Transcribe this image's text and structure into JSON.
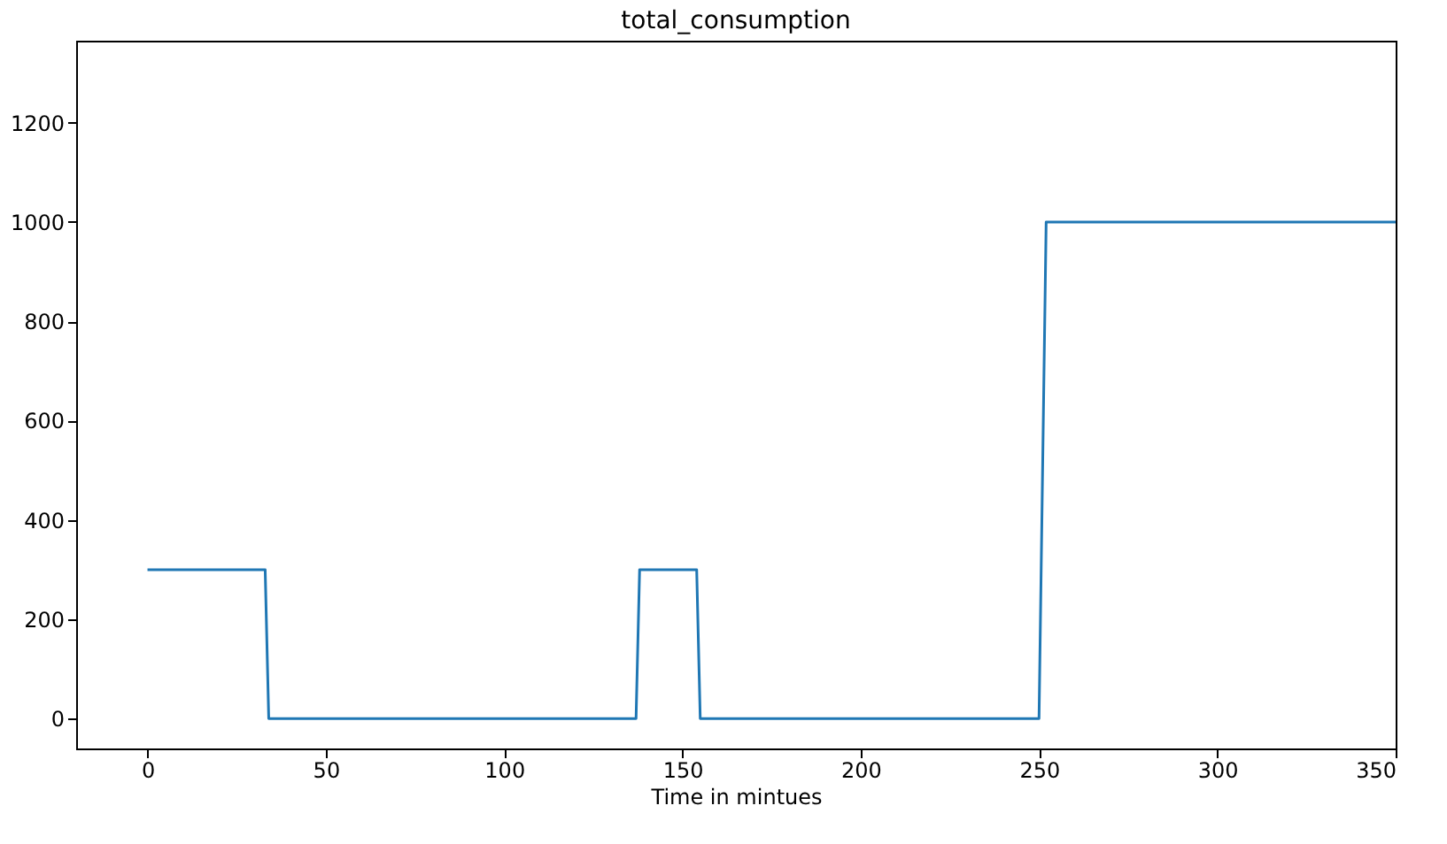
{
  "chart_data": {
    "type": "line",
    "title": "total_consumption",
    "xlabel": "Time in mintues",
    "x": [
      0,
      33,
      34,
      137,
      138,
      154,
      155,
      250,
      252,
      350
    ],
    "series": [
      {
        "color": "#1f77b4",
        "values": [
          300,
          300,
          0,
          0,
          300,
          300,
          0,
          0,
          1000,
          1000
        ]
      }
    ],
    "xlim": [
      -20,
      350
    ],
    "xticks": [
      0,
      50,
      100,
      150,
      200,
      250,
      300,
      350
    ],
    "ylim": [
      -60,
      1365
    ],
    "yticks": [
      0,
      200,
      400,
      600,
      800,
      1000,
      1200
    ],
    "grid": false
  }
}
